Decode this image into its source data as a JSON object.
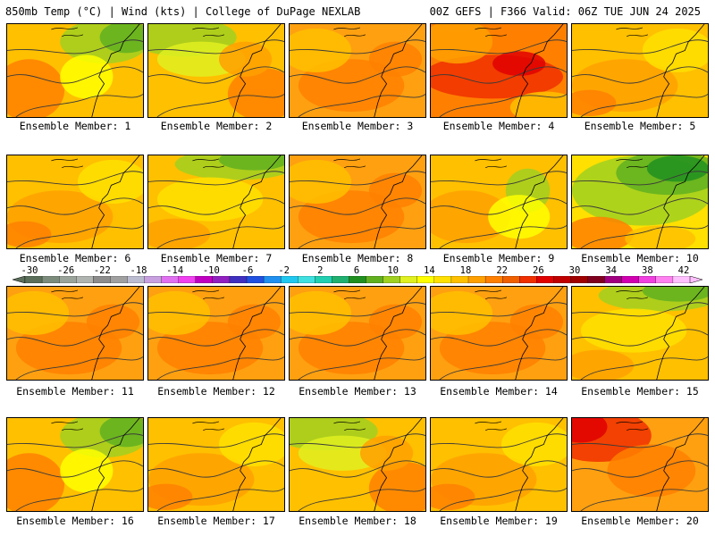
{
  "header": {
    "left_title": "850mb Temp (°C) | Wind (kts) | College of DuPage NEXLAB",
    "right_title": "00Z GEFS | F366 Valid: 06Z TUE JUN 24 2025"
  },
  "members": [
    {
      "label": "Ensemble Member: 1",
      "tone": "cool-ne"
    },
    {
      "label": "Ensemble Member: 2",
      "tone": "cool-nw"
    },
    {
      "label": "Ensemble Member: 3",
      "tone": "warm"
    },
    {
      "label": "Ensemble Member: 4",
      "tone": "hot"
    },
    {
      "label": "Ensemble Member: 5",
      "tone": "mild"
    },
    {
      "label": "Ensemble Member: 6",
      "tone": "mild"
    },
    {
      "label": "Ensemble Member: 7",
      "tone": "cool-n"
    },
    {
      "label": "Ensemble Member: 8",
      "tone": "warm"
    },
    {
      "label": "Ensemble Member: 9",
      "tone": "cool-e"
    },
    {
      "label": "Ensemble Member: 10",
      "tone": "cold-ne"
    },
    {
      "label": "Ensemble Member: 11",
      "tone": "warm"
    },
    {
      "label": "Ensemble Member: 12",
      "tone": "warm"
    },
    {
      "label": "Ensemble Member: 13",
      "tone": "warm"
    },
    {
      "label": "Ensemble Member: 14",
      "tone": "warm"
    },
    {
      "label": "Ensemble Member: 15",
      "tone": "cool-n"
    },
    {
      "label": "Ensemble Member: 16",
      "tone": "cool-ne"
    },
    {
      "label": "Ensemble Member: 17",
      "tone": "mild"
    },
    {
      "label": "Ensemble Member: 18",
      "tone": "cool-nw"
    },
    {
      "label": "Ensemble Member: 19",
      "tone": "mild"
    },
    {
      "label": "Ensemble Member: 20",
      "tone": "hot-nw"
    }
  ],
  "colorbar": {
    "labels": [
      "-30",
      "-26",
      "-22",
      "-18",
      "-14",
      "-10",
      "-6",
      "-2",
      "2",
      "6",
      "10",
      "14",
      "18",
      "22",
      "26",
      "30",
      "34",
      "38",
      "42"
    ],
    "colors": [
      "#5a6e5a",
      "#7c8c7c",
      "#9aa49a",
      "#b0b4b0",
      "#8c8c8c",
      "#a0a0a0",
      "#bcbcd0",
      "#c8a0e0",
      "#e070f0",
      "#f040f0",
      "#c000c0",
      "#9020c0",
      "#4030c0",
      "#2050e0",
      "#2090f0",
      "#20c8f0",
      "#40e0e0",
      "#20d0b0",
      "#20b070",
      "#209020",
      "#60b020",
      "#a0d020",
      "#e0f020",
      "#ffff00",
      "#ffe000",
      "#ffc000",
      "#ffa000",
      "#ff8000",
      "#f06000",
      "#f03000",
      "#e00000",
      "#c00000",
      "#a00000",
      "#800020",
      "#a00080",
      "#d000b0",
      "#f040e0",
      "#ff80f0",
      "#ffc0ff"
    ]
  }
}
